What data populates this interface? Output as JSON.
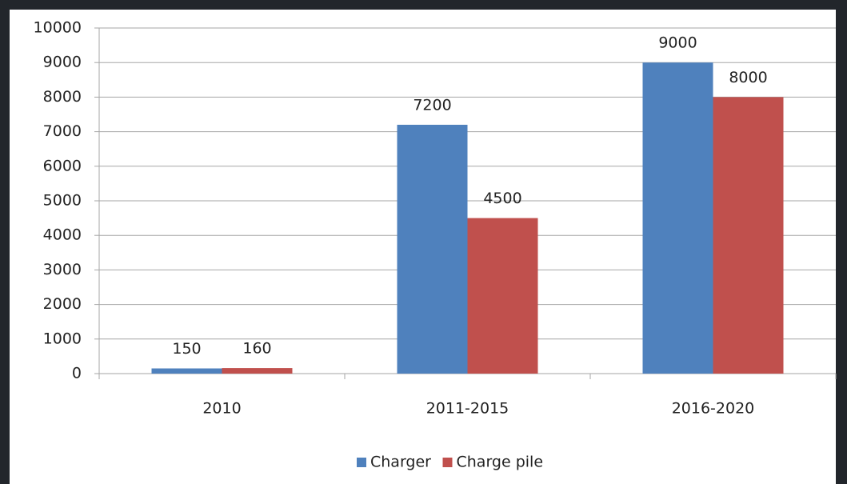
{
  "chart_data": {
    "type": "bar",
    "categories": [
      "2010",
      "2011-2015",
      "2016-2020"
    ],
    "series": [
      {
        "name": "Charger",
        "color": "#4f81bd",
        "values": [
          150,
          7200,
          9000
        ]
      },
      {
        "name": "Charge pile",
        "color": "#c0504d",
        "values": [
          160,
          4500,
          8000
        ]
      }
    ],
    "ylim": [
      0,
      10000
    ],
    "yticks": [
      0,
      1000,
      2000,
      3000,
      4000,
      5000,
      6000,
      7000,
      8000,
      9000,
      10000
    ],
    "grid": true,
    "legend": "bottom"
  }
}
